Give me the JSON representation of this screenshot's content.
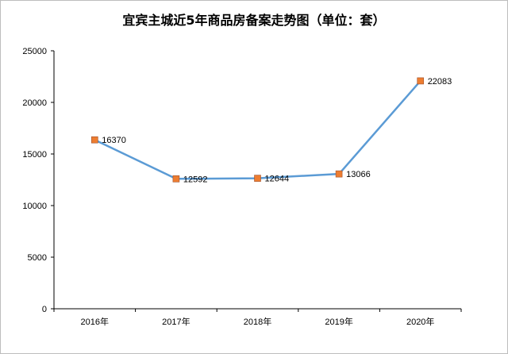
{
  "chart_data": {
    "type": "line",
    "title": "宜宾主城近5年商品房备案走势图（单位：套）",
    "xlabel": "",
    "ylabel": "",
    "categories": [
      "2016年",
      "2017年",
      "2018年",
      "2019年",
      "2020年"
    ],
    "series": [
      {
        "values": [
          16370,
          12592,
          12644,
          13066,
          22083
        ]
      }
    ],
    "ylim": [
      0,
      25000
    ],
    "yticks": [
      "0",
      "5000",
      "10000",
      "15000",
      "20000",
      "25000"
    ],
    "data_labels": [
      "16370",
      "12592",
      "12644",
      "13066",
      "22083"
    ],
    "grid": false,
    "legend": "none",
    "colors": {
      "line": "#5b9bd5",
      "marker_fill": "#ed7d31",
      "marker_stroke": "#a0522d",
      "axis": "#000000"
    }
  }
}
